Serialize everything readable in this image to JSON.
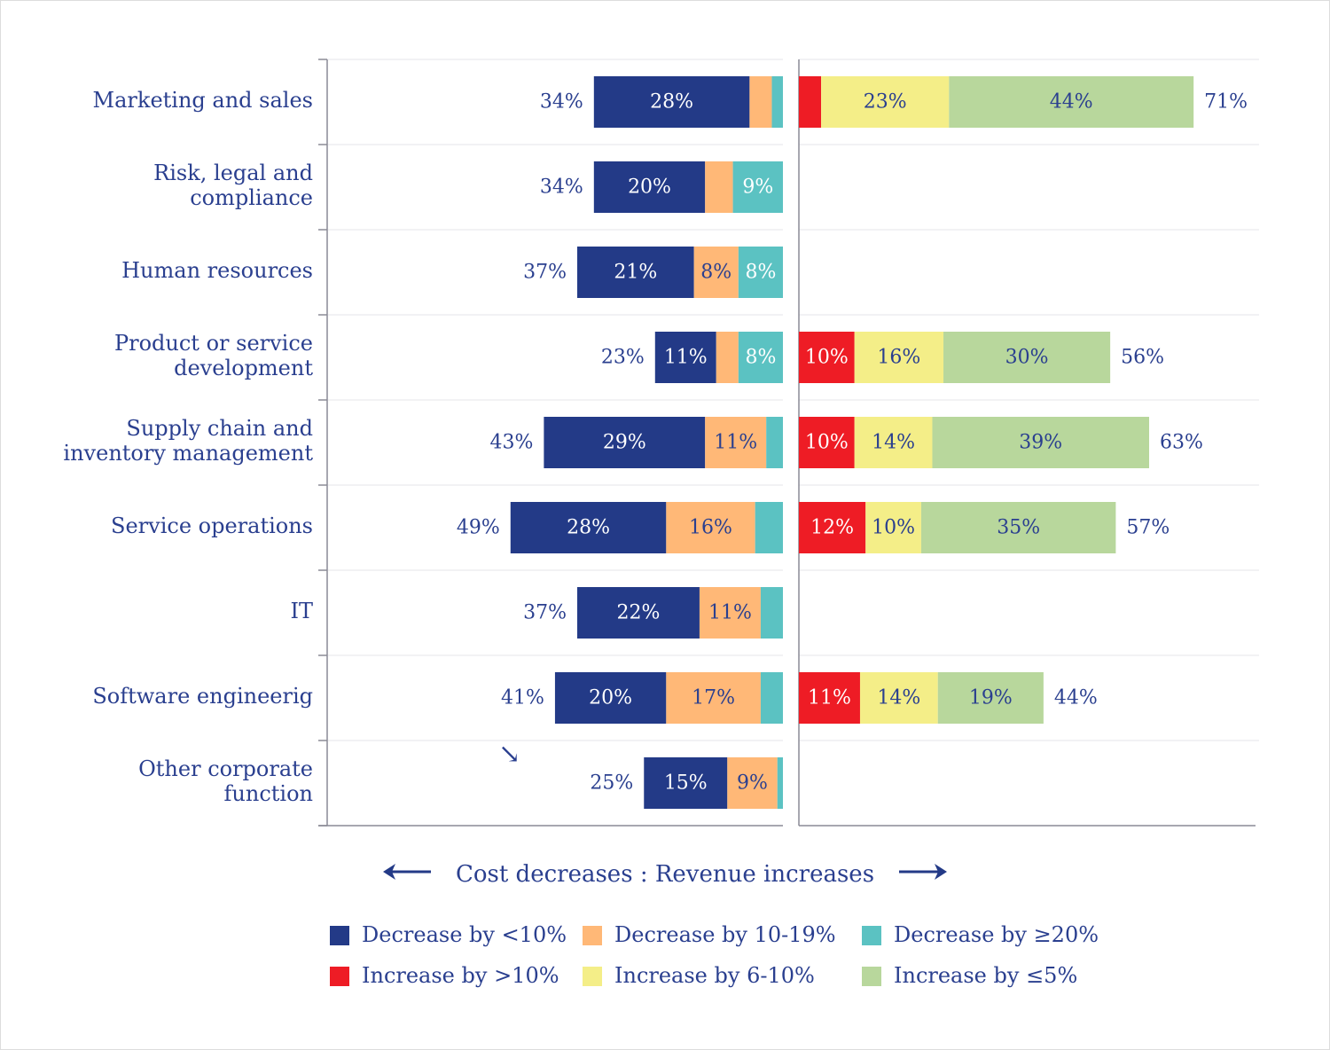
{
  "chart_data": {
    "type": "bar",
    "orientation": "horizontal-diverging-stacked",
    "title": "",
    "caption": {
      "left_text": "Cost decreases",
      "separator": ":",
      "right_text": "Revenue increases",
      "left_arrow": "←",
      "right_arrow": "→"
    },
    "categories": [
      "Marketing and sales",
      "Risk, legal and\ncompliance",
      "Human resources",
      "Product or service\ndevelopment",
      "Supply chain and\ninventory management",
      "Service operations",
      "IT",
      "Software engineerig",
      "Other corporate\nfunction"
    ],
    "cost_decrease": {
      "side": "left",
      "totals": [
        "34%",
        "34%",
        "37%",
        "23%",
        "43%",
        "49%",
        "37%",
        "41%",
        "25%"
      ],
      "series": [
        {
          "name": "Decrease by <10%",
          "color": "#233A87",
          "text_color": "#ffffff",
          "values": [
            28,
            20,
            21,
            11,
            29,
            28,
            22,
            20,
            15
          ],
          "labels": [
            "28%",
            "20%",
            "21%",
            "11%",
            "29%",
            "28%",
            "22%",
            "20%",
            "15%"
          ]
        },
        {
          "name": "Decrease by 10-19%",
          "color": "#FFB877",
          "text_color": "#2A3F8F",
          "values": [
            4,
            5,
            8,
            4,
            11,
            16,
            11,
            17,
            9
          ],
          "labels": [
            null,
            null,
            "8%",
            null,
            "11%",
            "16%",
            "11%",
            "17%",
            "9%"
          ]
        },
        {
          "name": "Decrease by ≥20%",
          "color": "#5BC2C2",
          "text_color": "#ffffff",
          "values": [
            2,
            9,
            8,
            8,
            3,
            5,
            4,
            4,
            1
          ],
          "labels": [
            null,
            "9%",
            "8%",
            "8%",
            null,
            null,
            null,
            null,
            null
          ]
        }
      ]
    },
    "revenue_increase": {
      "side": "right",
      "totals": [
        "71%",
        null,
        null,
        "56%",
        "63%",
        "57%",
        null,
        "44%",
        null
      ],
      "series": [
        {
          "name": "Increase by >10%",
          "color": "#EE1C25",
          "text_color": "#ffffff",
          "values": [
            4,
            0,
            0,
            10,
            10,
            12,
            0,
            11,
            0
          ],
          "labels": [
            null,
            null,
            null,
            "10%",
            "10%",
            "12%",
            null,
            "11%",
            null
          ]
        },
        {
          "name": "Increase by 6-10%",
          "color": "#F4EE88",
          "text_color": "#2A3F8F",
          "values": [
            23,
            0,
            0,
            16,
            14,
            10,
            0,
            14,
            0
          ],
          "labels": [
            "23%",
            null,
            null,
            "16%",
            "14%",
            "10%",
            null,
            "14%",
            null
          ]
        },
        {
          "name": "Increase by ≤5%",
          "color": "#B8D79C",
          "text_color": "#2A3F8F",
          "values": [
            44,
            0,
            0,
            30,
            39,
            35,
            0,
            19,
            0
          ],
          "labels": [
            "44%",
            null,
            null,
            "30%",
            "39%",
            "35%",
            null,
            "19%",
            null
          ]
        }
      ]
    },
    "xlim": [
      -50,
      80
    ],
    "grid": true,
    "legend": {
      "position": "bottom",
      "items": [
        {
          "label": "Decrease by <10%",
          "color": "#233A87"
        },
        {
          "label": "Decrease by 10-19%",
          "color": "#FFB877"
        },
        {
          "label": "Decrease by ≥20%",
          "color": "#5BC2C2"
        },
        {
          "label": "Increase by >10%",
          "color": "#EE1C25"
        },
        {
          "label": "Increase by 6-10%",
          "color": "#F4EE88"
        },
        {
          "label": "Increase by ≤5%",
          "color": "#B8D79C"
        }
      ]
    },
    "annotation": "↘"
  },
  "colors": {
    "text": "#2A3F8F",
    "axis": "#8a8a95",
    "grid": "#e6e6ea"
  }
}
